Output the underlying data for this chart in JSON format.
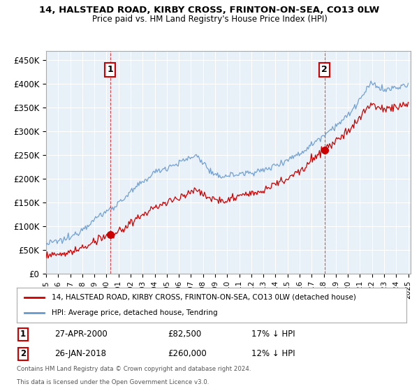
{
  "title": "14, HALSTEAD ROAD, KIRBY CROSS, FRINTON-ON-SEA, CO13 0LW",
  "subtitle": "Price paid vs. HM Land Registry's House Price Index (HPI)",
  "ylabel_ticks": [
    "£0",
    "£50K",
    "£100K",
    "£150K",
    "£200K",
    "£250K",
    "£300K",
    "£350K",
    "£400K",
    "£450K"
  ],
  "ytick_values": [
    0,
    50000,
    100000,
    150000,
    200000,
    250000,
    300000,
    350000,
    400000,
    450000
  ],
  "ylim": [
    0,
    470000
  ],
  "xlim_start": 1995.0,
  "xlim_end": 2025.2,
  "transaction1_date": 2000.32,
  "transaction1_price": 82500,
  "transaction1_label": "1",
  "transaction2_date": 2018.07,
  "transaction2_price": 260000,
  "transaction2_label": "2",
  "red_color": "#cc0000",
  "blue_color": "#6699cc",
  "blue_fill": "#ddeeff",
  "vline_color": "#cc0000",
  "background_color": "#ffffff",
  "plot_bg_color": "#e8f0f8",
  "grid_color": "#ffffff",
  "legend_label_red": "14, HALSTEAD ROAD, KIRBY CROSS, FRINTON-ON-SEA, CO13 0LW (detached house)",
  "legend_label_blue": "HPI: Average price, detached house, Tendring",
  "table_row1": [
    "1",
    "27-APR-2000",
    "£82,500",
    "17% ↓ HPI"
  ],
  "table_row2": [
    "2",
    "26-JAN-2018",
    "£260,000",
    "12% ↓ HPI"
  ],
  "footnote1": "Contains HM Land Registry data © Crown copyright and database right 2024.",
  "footnote2": "This data is licensed under the Open Government Licence v3.0."
}
